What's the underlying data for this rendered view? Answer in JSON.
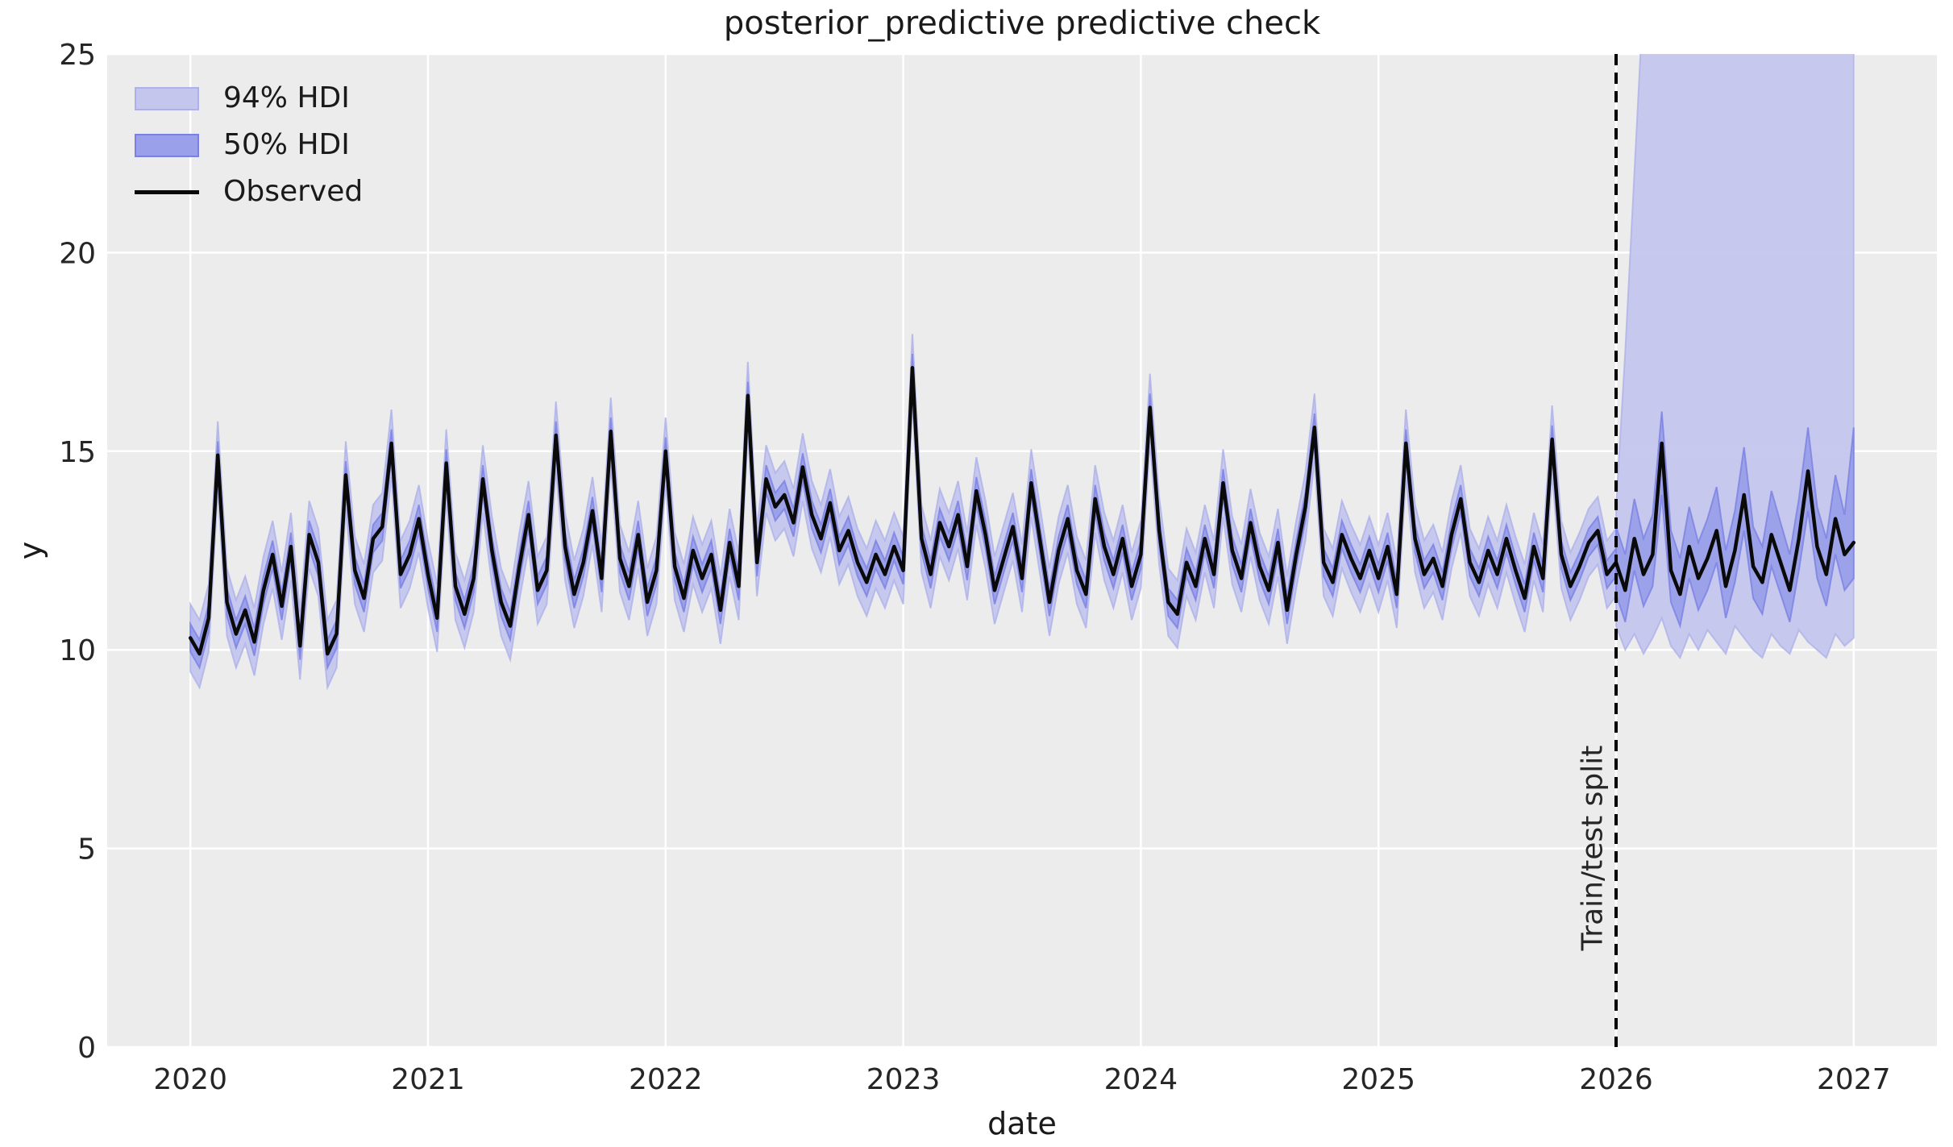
{
  "chart_data": {
    "type": "line",
    "title": "posterior_predictive predictive check",
    "xlabel": "date",
    "ylabel": "y",
    "xlim": [
      2019.65,
      2027.35
    ],
    "ylim": [
      0,
      25
    ],
    "xticks": [
      "2020",
      "2021",
      "2022",
      "2023",
      "2024",
      "2025",
      "2026",
      "2027"
    ],
    "xtick_values": [
      2020,
      2021,
      2022,
      2023,
      2024,
      2025,
      2026,
      2027
    ],
    "yticks": [
      "0",
      "5",
      "10",
      "15",
      "20",
      "25"
    ],
    "ytick_values": [
      0,
      5,
      10,
      15,
      20,
      25
    ],
    "grid": true,
    "legend_position": "upper left",
    "colors": {
      "axes_background": "#ececec",
      "gridline": "#ffffff",
      "hdi94_fill": "#c5c6ed",
      "hdi94_edge": "#aeb1e9",
      "hdi50_fill": "#9aa0e9",
      "hdi50_edge": "#7a81e2",
      "observed_line": "#0a0a0a",
      "split_line": "#000000",
      "text": "#262626"
    },
    "legend": {
      "entries": [
        {
          "label": "94% HDI",
          "type": "patch"
        },
        {
          "label": "50% HDI",
          "type": "patch"
        },
        {
          "label": "Observed",
          "type": "line"
        }
      ]
    },
    "split": {
      "x": 2026.0,
      "label": "Train/test split",
      "linestyle": "dashed"
    },
    "observed": {
      "name": "Observed",
      "x_start": 2020.0,
      "x_step": 0.0384615,
      "values": [
        10.3,
        9.9,
        10.8,
        14.9,
        11.2,
        10.4,
        11.0,
        10.2,
        11.5,
        12.4,
        11.1,
        12.6,
        10.1,
        12.9,
        12.2,
        9.9,
        10.4,
        14.4,
        12.0,
        11.3,
        12.8,
        13.1,
        15.2,
        11.9,
        12.4,
        13.3,
        11.9,
        10.8,
        14.7,
        11.6,
        10.9,
        11.8,
        14.3,
        12.5,
        11.2,
        10.6,
        12.1,
        13.4,
        11.5,
        12.0,
        15.4,
        12.6,
        11.4,
        12.2,
        13.5,
        11.8,
        15.5,
        12.3,
        11.6,
        12.9,
        11.2,
        12.0,
        15.0,
        12.1,
        11.3,
        12.5,
        11.8,
        12.4,
        11.0,
        12.7,
        11.6,
        16.4,
        12.2,
        14.3,
        13.6,
        13.9,
        13.2,
        14.6,
        13.4,
        12.8,
        13.7,
        12.5,
        13.0,
        12.2,
        11.7,
        12.4,
        11.9,
        12.6,
        12.0,
        17.1,
        12.8,
        11.9,
        13.2,
        12.6,
        13.4,
        12.1,
        14.0,
        12.9,
        11.5,
        12.3,
        13.1,
        11.8,
        14.2,
        12.7,
        11.2,
        12.5,
        13.3,
        12.0,
        11.4,
        13.8,
        12.6,
        11.9,
        12.8,
        11.6,
        12.4,
        16.1,
        13.0,
        11.2,
        10.9,
        12.2,
        11.6,
        12.8,
        11.9,
        14.2,
        12.5,
        11.8,
        13.2,
        12.1,
        11.5,
        12.7,
        11.0,
        12.4,
        13.6,
        15.6,
        12.2,
        11.7,
        12.9,
        12.3,
        11.8,
        12.5,
        11.8,
        12.6,
        11.4,
        15.2,
        12.8,
        11.9,
        12.3,
        11.6,
        12.9,
        13.8,
        12.2,
        11.7,
        12.5,
        11.9,
        12.8,
        12.0,
        11.3,
        12.6,
        11.8,
        15.3,
        12.4,
        11.6,
        12.1,
        12.7,
        13.0,
        11.9,
        12.2,
        11.5,
        12.8,
        11.9,
        12.4,
        15.2,
        12.0,
        11.4,
        12.6,
        11.8,
        12.3,
        13.0,
        11.6,
        12.5,
        13.9,
        12.1,
        11.7,
        12.9,
        12.2,
        11.5,
        12.8,
        14.5,
        12.6,
        11.9,
        13.3,
        12.4,
        12.7
      ]
    },
    "hdi_train": {
      "x_end": 2026.0,
      "hdi94_halfwidth": 0.85,
      "hdi50_halfwidth": 0.35
    },
    "hdi_forecast": {
      "x_start": 2026.0,
      "x_step": 0.0384615,
      "hdi94_lower": [
        10.6,
        10.0,
        10.4,
        9.9,
        10.3,
        10.8,
        10.1,
        9.8,
        10.4,
        10.0,
        10.5,
        10.2,
        9.9,
        10.6,
        10.3,
        10.0,
        9.8,
        10.4,
        10.1,
        9.9,
        10.5,
        10.2,
        10.0,
        9.8,
        10.4,
        10.1,
        10.3
      ],
      "hdi94_upper": [
        13.6,
        17.5,
        22.0,
        26.5,
        28.0,
        28.5,
        28.0,
        28.5,
        28.0,
        28.5,
        28.0,
        28.5,
        28.0,
        28.5,
        28.0,
        28.5,
        28.0,
        28.5,
        28.0,
        28.5,
        28.0,
        28.5,
        28.0,
        28.5,
        28.0,
        28.5,
        27.5
      ],
      "hdi50_lower": [
        11.4,
        10.7,
        12.0,
        11.1,
        11.6,
        13.9,
        11.2,
        10.6,
        11.8,
        11.0,
        11.5,
        12.2,
        10.8,
        11.7,
        13.0,
        11.3,
        10.9,
        12.1,
        11.4,
        10.7,
        12.0,
        13.5,
        11.8,
        11.1,
        12.4,
        11.5,
        11.8
      ],
      "hdi50_upper": [
        13.1,
        12.4,
        13.8,
        12.8,
        13.4,
        16.0,
        13.0,
        12.3,
        13.6,
        12.7,
        13.3,
        14.1,
        12.5,
        13.5,
        15.1,
        13.1,
        12.6,
        14.0,
        13.2,
        12.4,
        13.8,
        15.6,
        13.6,
        12.8,
        14.4,
        13.4,
        15.6
      ]
    }
  }
}
